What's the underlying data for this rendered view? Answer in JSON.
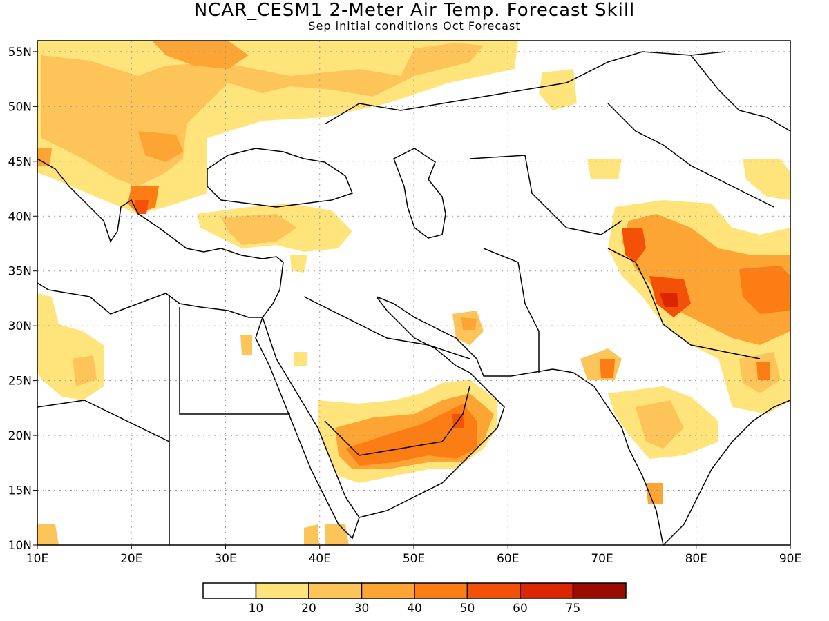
{
  "title": "NCAR_CESM1 2-Meter Air Temp. Forecast Skill",
  "subtitle": "Sep initial conditions  Oct Forecast",
  "map": {
    "lon_range": [
      10,
      90
    ],
    "lat_range": [
      10,
      56
    ],
    "lon_ticks": [
      "10E",
      "20E",
      "30E",
      "40E",
      "50E",
      "60E",
      "70E",
      "80E",
      "90E"
    ],
    "lat_ticks": [
      "10N",
      "15N",
      "20N",
      "25N",
      "30N",
      "35N",
      "40N",
      "45N",
      "50N",
      "55N"
    ],
    "gridlines": "dotted"
  },
  "legend": {
    "colors": [
      "#ffffff",
      "#fee47a",
      "#fdc45a",
      "#fca535",
      "#fb7d14",
      "#f25107",
      "#dc2602",
      "#9a0b00"
    ],
    "labels": [
      "10",
      "20",
      "30",
      "40",
      "50",
      "60",
      "75"
    ]
  }
}
